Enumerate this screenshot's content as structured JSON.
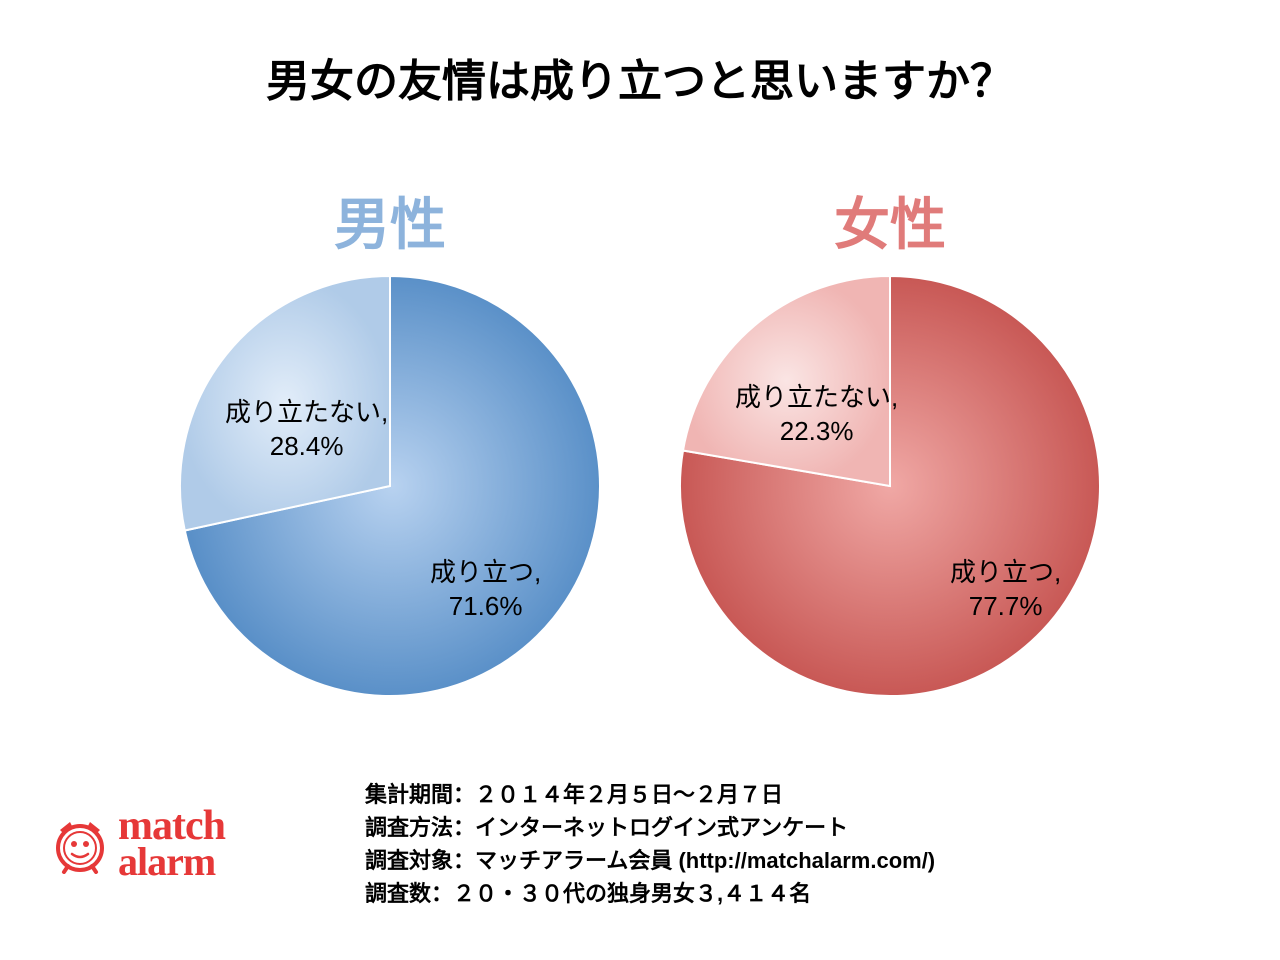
{
  "title": "男女の友情は成り立つと思いますか？",
  "charts": {
    "male": {
      "label": "男性",
      "label_color": "#8db3dc",
      "slices": [
        {
          "name": "成り立つ",
          "value": 71.6,
          "label_line1": "成り立つ,",
          "label_line2": "71.6%",
          "gradient_center": "#b8d2f0",
          "gradient_edge": "#5a90c8"
        },
        {
          "name": "成り立たない",
          "value": 28.4,
          "label_line1": "成り立たない,",
          "label_line2": "28.4%",
          "gradient_center": "#e2edf9",
          "gradient_edge": "#b0cbe8"
        }
      ]
    },
    "female": {
      "label": "女性",
      "label_color": "#e07b7a",
      "slices": [
        {
          "name": "成り立つ",
          "value": 77.7,
          "label_line1": "成り立つ,",
          "label_line2": "77.7%",
          "gradient_center": "#f0a8a5",
          "gradient_edge": "#c85855"
        },
        {
          "name": "成り立たない",
          "value": 22.3,
          "label_line1": "成り立たない,",
          "label_line2": "22.3%",
          "gradient_center": "#fae5e4",
          "gradient_edge": "#f0b5b3"
        }
      ]
    }
  },
  "logo": {
    "text_top": "match",
    "text_bottom": "alarm",
    "color": "#e63838"
  },
  "survey_info": {
    "line1": "集計期間：２０１４年２月５日～２月７日",
    "line2": "調査方法：インターネットログイン式アンケート",
    "line3": "調査対象：マッチアラーム会員 (http://matchalarm.com/)",
    "line4": "調査数：２０・３０代の独身男女３,４１４名"
  }
}
